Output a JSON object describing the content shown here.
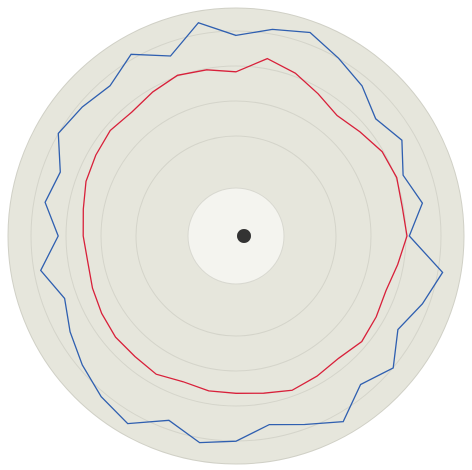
{
  "chart_data": {
    "type": "polar-line",
    "theta": [
      0,
      10,
      20,
      30,
      40,
      50,
      60,
      70,
      80,
      90,
      100,
      110,
      120,
      130,
      140,
      150,
      160,
      170,
      180,
      190,
      200,
      210,
      220,
      230,
      240,
      250,
      260,
      270,
      280,
      290,
      300,
      310,
      320,
      330,
      340,
      350
    ],
    "rlim": [
      0,
      100
    ],
    "series": [
      {
        "color": "#2f5fb0",
        "values": [
          88,
          92,
          95,
          90,
          86,
          80,
          84,
          78,
          83,
          76,
          92,
          87,
          82,
          90,
          85,
          94,
          88,
          84,
          90,
          92,
          86,
          95,
          92,
          88,
          84,
          80,
          87,
          78,
          85,
          82,
          90,
          88,
          86,
          92,
          84,
          95
        ]
      },
      {
        "color": "#d8203a",
        "values": [
          72,
          79,
          76,
          72,
          69,
          71,
          74,
          75,
          74,
          75,
          72,
          70,
          71,
          72,
          70,
          71,
          72,
          70,
          69,
          69,
          68,
          70,
          69,
          69,
          68,
          67,
          66,
          67,
          68,
          70,
          71,
          72,
          71,
          73,
          75,
          74
        ]
      }
    ]
  }
}
